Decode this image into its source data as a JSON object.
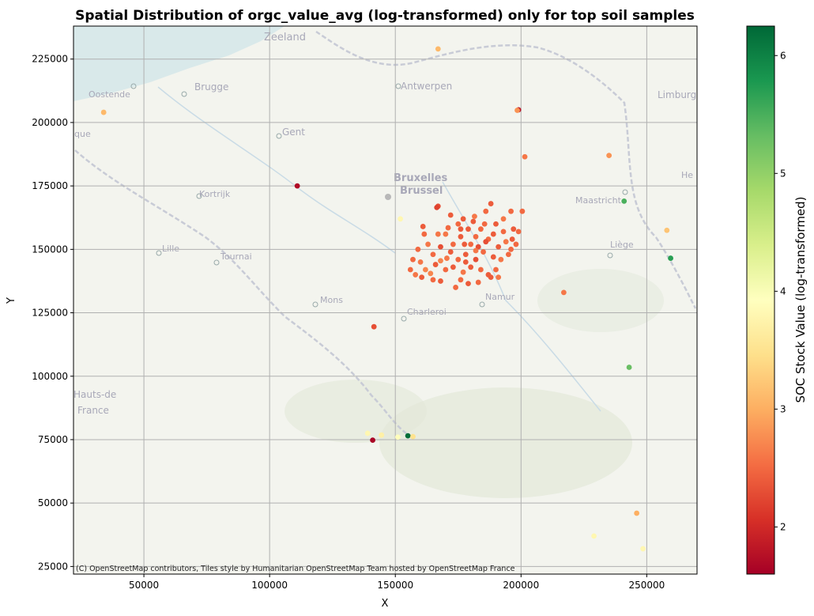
{
  "chart_data": {
    "type": "scatter",
    "title": "Spatial Distribution of orgc_value_avg (log-transformed) only for top soil samples",
    "xlabel": "X",
    "ylabel": "Y",
    "xlim": [
      22000,
      270000
    ],
    "ylim": [
      22000,
      238000
    ],
    "xticks": [
      50000,
      100000,
      150000,
      200000,
      250000
    ],
    "yticks": [
      25000,
      50000,
      75000,
      100000,
      125000,
      150000,
      175000,
      200000,
      225000
    ],
    "grid": true,
    "colorbar": {
      "label": "SOC Stock Value (log-transformed)",
      "colormap": "RdYlGn",
      "range": [
        1.6,
        6.25
      ],
      "ticks": [
        2,
        3,
        4,
        5,
        6
      ]
    },
    "attribution": "(C) OpenStreetMap contributors, Tiles style by Humanitarian OpenStreetMap Team hosted by OpenStreetMap France",
    "map_labels": [
      "Zeeland",
      "Oostende",
      "Brugge",
      "Antwerpen",
      "Limburg",
      "Gent",
      "que",
      "Bruxelles",
      "Brussel",
      "Kortrijk",
      "Maastricht",
      "He",
      "Lille",
      "Tournai",
      "Liège",
      "Namur",
      "Mons",
      "Charleroi",
      "Hauts-de",
      "France"
    ],
    "points": [
      {
        "x": 199000,
        "y": 205000,
        "v": 1.8
      },
      {
        "x": 198500,
        "y": 204800,
        "v": 2.8
      },
      {
        "x": 111000,
        "y": 175000,
        "v": 1.7
      },
      {
        "x": 141000,
        "y": 74800,
        "v": 1.65
      },
      {
        "x": 155000,
        "y": 76500,
        "v": 6.2
      },
      {
        "x": 243000,
        "y": 103500,
        "v": 5.3
      },
      {
        "x": 259500,
        "y": 146500,
        "v": 5.7
      },
      {
        "x": 241000,
        "y": 169000,
        "v": 5.5
      },
      {
        "x": 167000,
        "y": 229000,
        "v": 3.1
      },
      {
        "x": 34000,
        "y": 204000,
        "v": 3.1
      },
      {
        "x": 235000,
        "y": 187000,
        "v": 2.8
      },
      {
        "x": 201500,
        "y": 186500,
        "v": 2.6
      },
      {
        "x": 258000,
        "y": 157500,
        "v": 3.2
      },
      {
        "x": 217000,
        "y": 133000,
        "v": 2.6
      },
      {
        "x": 141500,
        "y": 119500,
        "v": 2.3
      },
      {
        "x": 246000,
        "y": 46000,
        "v": 3.0
      },
      {
        "x": 229000,
        "y": 37000,
        "v": 3.8
      },
      {
        "x": 248500,
        "y": 32000,
        "v": 3.8
      },
      {
        "x": 139000,
        "y": 77500,
        "v": 3.8
      },
      {
        "x": 144500,
        "y": 76800,
        "v": 3.7
      },
      {
        "x": 151000,
        "y": 76000,
        "v": 3.9
      },
      {
        "x": 157000,
        "y": 76200,
        "v": 3.5
      },
      {
        "x": 152000,
        "y": 162000,
        "v": 3.8
      },
      {
        "x": 167000,
        "y": 167000,
        "v": 2.3
      },
      {
        "x": 161000,
        "y": 159000,
        "v": 2.4
      },
      {
        "x": 166500,
        "y": 166500,
        "v": 2.2
      },
      {
        "x": 177000,
        "y": 162000,
        "v": 2.4
      },
      {
        "x": 186000,
        "y": 165000,
        "v": 2.5
      },
      {
        "x": 188000,
        "y": 168000,
        "v": 2.4
      },
      {
        "x": 196000,
        "y": 165000,
        "v": 2.5
      },
      {
        "x": 200500,
        "y": 165000,
        "v": 2.5
      },
      {
        "x": 172000,
        "y": 163500,
        "v": 2.4
      },
      {
        "x": 175000,
        "y": 160000,
        "v": 2.5
      },
      {
        "x": 181000,
        "y": 161000,
        "v": 2.4
      },
      {
        "x": 184000,
        "y": 158000,
        "v": 2.5
      },
      {
        "x": 190000,
        "y": 160000,
        "v": 2.4
      },
      {
        "x": 193000,
        "y": 162000,
        "v": 2.6
      },
      {
        "x": 197000,
        "y": 158000,
        "v": 2.4
      },
      {
        "x": 199000,
        "y": 157000,
        "v": 2.5
      },
      {
        "x": 170000,
        "y": 156000,
        "v": 2.6
      },
      {
        "x": 176000,
        "y": 155000,
        "v": 2.4
      },
      {
        "x": 180000,
        "y": 152000,
        "v": 2.5
      },
      {
        "x": 183000,
        "y": 151000,
        "v": 2.3
      },
      {
        "x": 187000,
        "y": 154000,
        "v": 2.5
      },
      {
        "x": 191000,
        "y": 151000,
        "v": 2.4
      },
      {
        "x": 194000,
        "y": 153000,
        "v": 2.6
      },
      {
        "x": 196000,
        "y": 150000,
        "v": 2.5
      },
      {
        "x": 168000,
        "y": 151000,
        "v": 2.3
      },
      {
        "x": 165000,
        "y": 148000,
        "v": 2.5
      },
      {
        "x": 172000,
        "y": 149000,
        "v": 2.4
      },
      {
        "x": 175000,
        "y": 146000,
        "v": 2.5
      },
      {
        "x": 178000,
        "y": 148000,
        "v": 2.4
      },
      {
        "x": 182000,
        "y": 146000,
        "v": 2.3
      },
      {
        "x": 185000,
        "y": 149000,
        "v": 2.5
      },
      {
        "x": 189000,
        "y": 147000,
        "v": 2.4
      },
      {
        "x": 192000,
        "y": 146000,
        "v": 2.6
      },
      {
        "x": 195000,
        "y": 148000,
        "v": 2.5
      },
      {
        "x": 160000,
        "y": 145000,
        "v": 2.6
      },
      {
        "x": 157000,
        "y": 146000,
        "v": 2.5
      },
      {
        "x": 162000,
        "y": 142000,
        "v": 2.7
      },
      {
        "x": 166000,
        "y": 144000,
        "v": 2.4
      },
      {
        "x": 170000,
        "y": 142000,
        "v": 2.5
      },
      {
        "x": 173000,
        "y": 143000,
        "v": 2.4
      },
      {
        "x": 177000,
        "y": 141000,
        "v": 2.6
      },
      {
        "x": 180000,
        "y": 143000,
        "v": 2.4
      },
      {
        "x": 184000,
        "y": 142000,
        "v": 2.5
      },
      {
        "x": 187000,
        "y": 140000,
        "v": 2.4
      },
      {
        "x": 190000,
        "y": 142000,
        "v": 2.5
      },
      {
        "x": 156000,
        "y": 142000,
        "v": 2.5
      },
      {
        "x": 158000,
        "y": 140000,
        "v": 2.6
      },
      {
        "x": 160500,
        "y": 139000,
        "v": 2.4
      },
      {
        "x": 165000,
        "y": 138000,
        "v": 2.5
      },
      {
        "x": 168000,
        "y": 137500,
        "v": 2.4
      },
      {
        "x": 176000,
        "y": 138000,
        "v": 2.5
      },
      {
        "x": 179000,
        "y": 136500,
        "v": 2.4
      },
      {
        "x": 183000,
        "y": 137000,
        "v": 2.5
      },
      {
        "x": 188000,
        "y": 139000,
        "v": 2.4
      },
      {
        "x": 191000,
        "y": 139000,
        "v": 2.6
      },
      {
        "x": 174000,
        "y": 135000,
        "v": 2.5
      },
      {
        "x": 178000,
        "y": 145000,
        "v": 2.4
      },
      {
        "x": 186000,
        "y": 153000,
        "v": 2.3
      },
      {
        "x": 182000,
        "y": 155000,
        "v": 2.5
      },
      {
        "x": 179000,
        "y": 158000,
        "v": 2.4
      },
      {
        "x": 173000,
        "y": 152000,
        "v": 2.5
      },
      {
        "x": 163000,
        "y": 152000,
        "v": 2.6
      },
      {
        "x": 159000,
        "y": 150000,
        "v": 2.5
      },
      {
        "x": 168000,
        "y": 145500,
        "v": 2.7
      },
      {
        "x": 193000,
        "y": 157000,
        "v": 2.5
      },
      {
        "x": 189000,
        "y": 156000,
        "v": 2.4
      },
      {
        "x": 185500,
        "y": 160000,
        "v": 2.5
      },
      {
        "x": 181500,
        "y": 163000,
        "v": 2.6
      },
      {
        "x": 176000,
        "y": 158000,
        "v": 2.4
      },
      {
        "x": 171000,
        "y": 158500,
        "v": 2.5
      },
      {
        "x": 167000,
        "y": 156000,
        "v": 2.6
      },
      {
        "x": 161500,
        "y": 156000,
        "v": 2.5
      },
      {
        "x": 196500,
        "y": 154000,
        "v": 2.4
      },
      {
        "x": 198000,
        "y": 152000,
        "v": 2.5
      },
      {
        "x": 182000,
        "y": 149500,
        "v": 2.6
      },
      {
        "x": 177500,
        "y": 152000,
        "v": 2.4
      },
      {
        "x": 170500,
        "y": 146500,
        "v": 2.6
      },
      {
        "x": 164000,
        "y": 140500,
        "v": 2.7
      }
    ]
  }
}
